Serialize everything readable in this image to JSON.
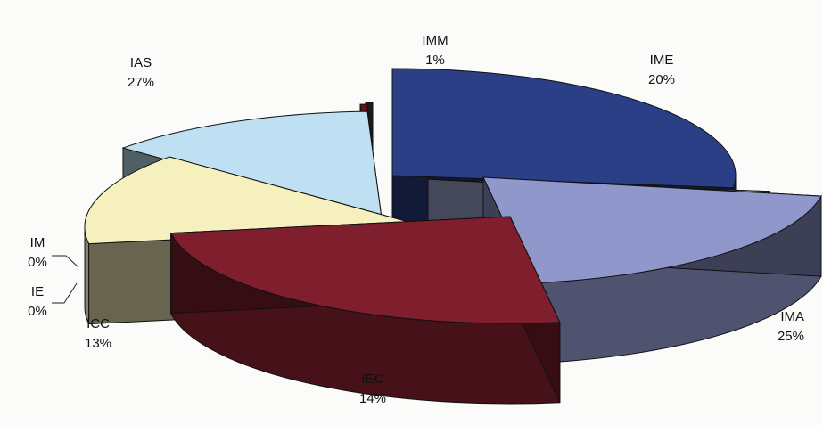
{
  "chart_data": {
    "type": "pie",
    "slices": [
      {
        "label": "IAS",
        "pct_label": "27%",
        "value": 27,
        "color": "#2b3f86"
      },
      {
        "label": "IMM",
        "pct_label": "1%",
        "value": 1,
        "color": "#a4acd8"
      },
      {
        "label": "IME",
        "pct_label": "20%",
        "value": 20,
        "color": "#9097cb"
      },
      {
        "label": "IMA",
        "pct_label": "25%",
        "value": 25,
        "color": "#7f1f2e"
      },
      {
        "label": "IEC",
        "pct_label": "14%",
        "value": 14,
        "color": "#f5f0bd"
      },
      {
        "label": "ICC",
        "pct_label": "13%",
        "value": 13,
        "color": "#bfe0f2"
      },
      {
        "label": "IE",
        "pct_label": "0%",
        "value": 0,
        "color": "#6a0f1a"
      },
      {
        "label": "IM",
        "pct_label": "0%",
        "value": 0,
        "color": "#1a1a1a"
      }
    ],
    "legend": "none",
    "style": "3d-exploded"
  }
}
